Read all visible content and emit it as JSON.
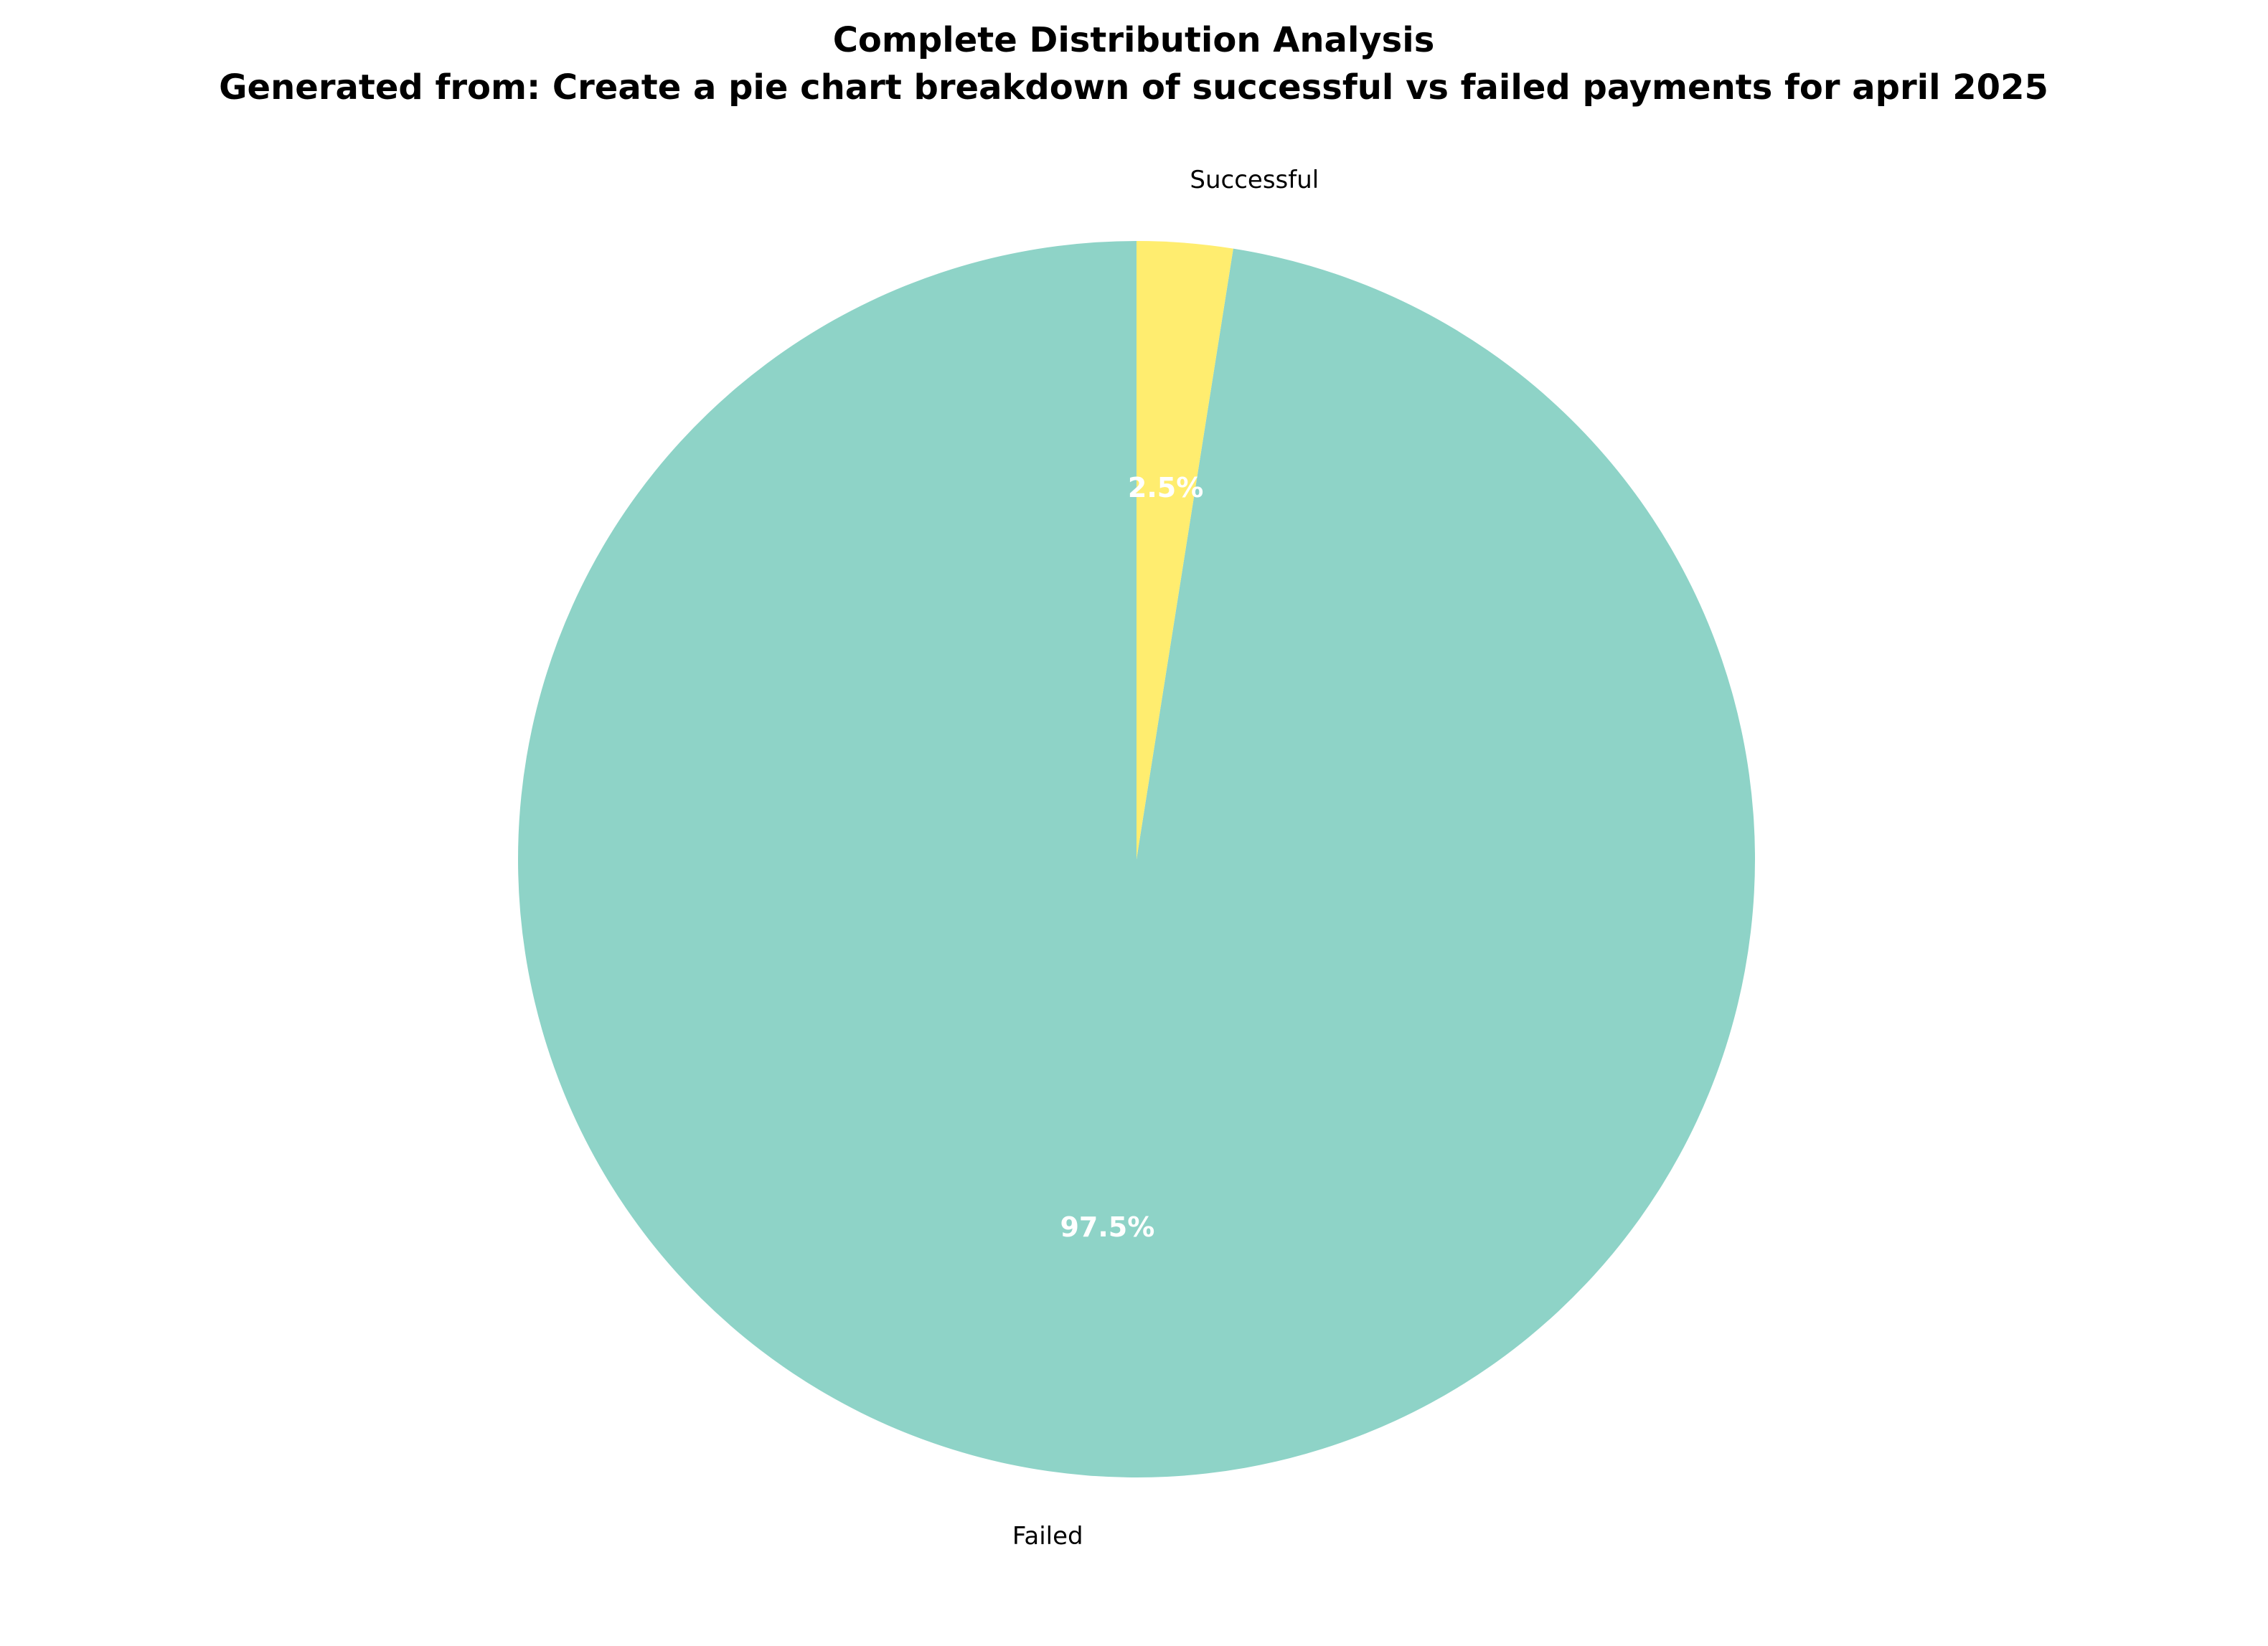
{
  "chart_data": {
    "type": "pie",
    "title": "Complete Distribution Analysis",
    "subtitle": "Generated from: Create a pie chart breakdown of successful vs failed payments for april 2025",
    "start_angle_deg": 90,
    "direction": "counterclockwise",
    "slices": [
      {
        "label": "Failed",
        "value": 97.5,
        "percent_label": "97.5%",
        "color": "#8ed3c7"
      },
      {
        "label": "Successful",
        "value": 2.5,
        "percent_label": "2.5%",
        "color": "#ffed6f"
      }
    ]
  }
}
